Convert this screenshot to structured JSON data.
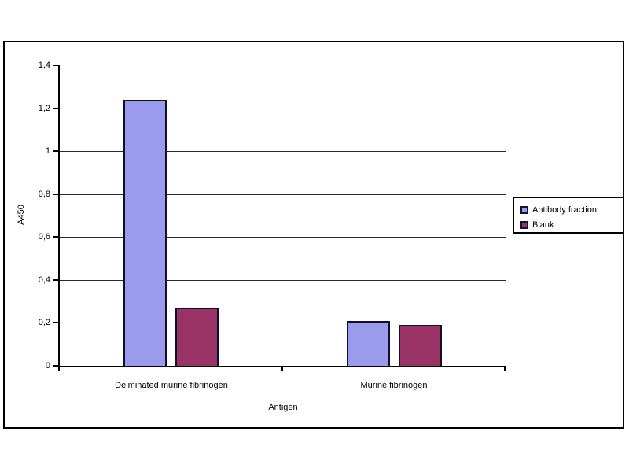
{
  "chart_data": {
    "type": "bar",
    "title": "",
    "xlabel": "Antigen",
    "ylabel": "A450",
    "categories": [
      "Deiminated murine fibrinogen",
      "Murine fibrinogen"
    ],
    "series": [
      {
        "name": "Antibody fraction",
        "color": "#9b9bee",
        "values": [
          1.24,
          0.21
        ]
      },
      {
        "name": "Blank",
        "color": "#993366",
        "values": [
          0.27,
          0.19
        ]
      }
    ],
    "ylim": [
      0,
      1.4
    ],
    "ytick_step": 0.2,
    "ytick_labels": [
      "0",
      "0,2",
      "0,4",
      "0,6",
      "0,8",
      "1",
      "1,2",
      "1,4"
    ],
    "decimal_separator": ",",
    "grid": true,
    "legend_position": "right",
    "plot_background": "#ffffff",
    "gridline_color": "#2a2a2a",
    "axis_color": "#000000"
  }
}
